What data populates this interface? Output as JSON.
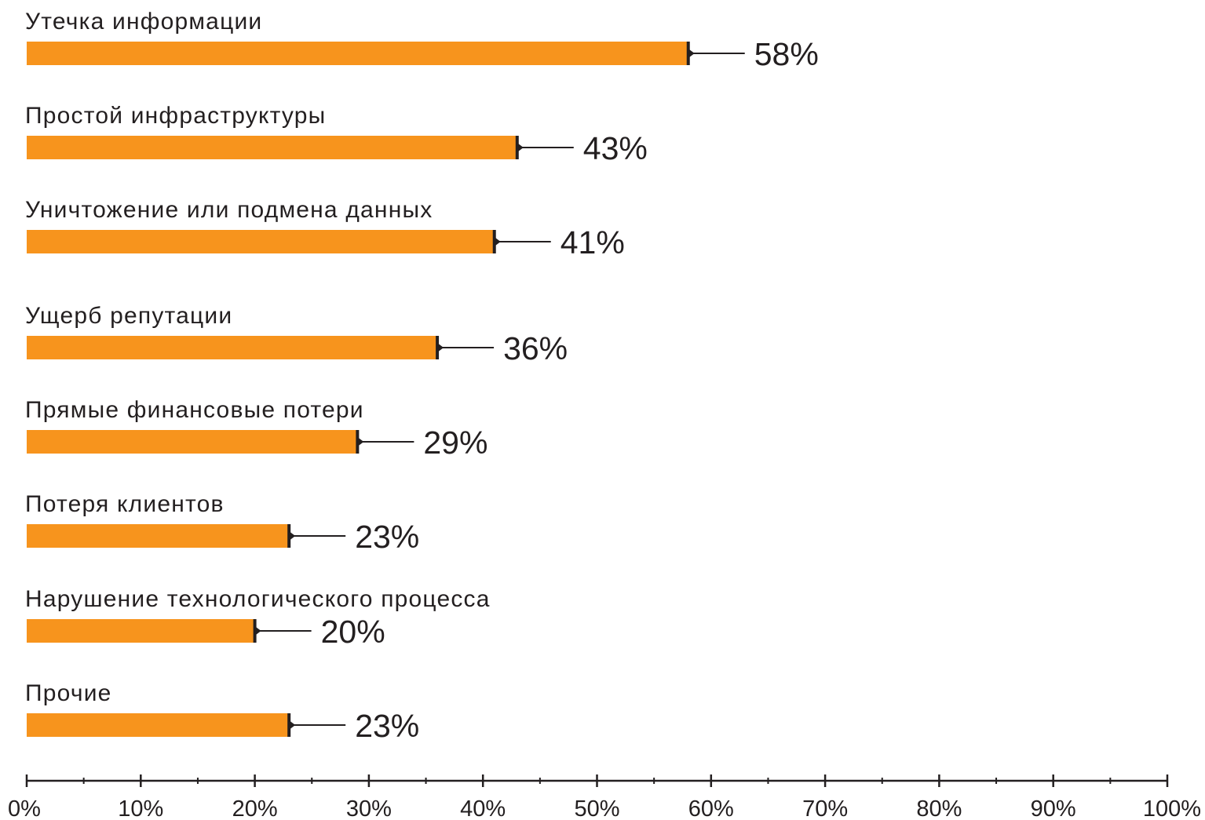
{
  "chart_data": {
    "type": "bar",
    "orientation": "horizontal",
    "categories": [
      "Утечка информации",
      "Простой инфраструктуры",
      "Уничтожение или подмена данных",
      "Ущерб репутации",
      "Прямые финансовые потери",
      "Потеря клиентов",
      "Нарушение технологического процесса",
      "Прочие"
    ],
    "values": [
      58,
      43,
      41,
      36,
      29,
      23,
      20,
      23
    ],
    "value_labels": [
      "58%",
      "43%",
      "41%",
      "36%",
      "29%",
      "23%",
      "20%",
      "23%"
    ],
    "xlim": [
      0,
      100
    ],
    "x_ticks": [
      0,
      10,
      20,
      30,
      40,
      50,
      60,
      70,
      80,
      90,
      100
    ],
    "x_tick_labels": [
      "0%",
      "10%",
      "20%",
      "30%",
      "40%",
      "50%",
      "60%",
      "70%",
      "80%",
      "90%",
      "100%"
    ],
    "title": "",
    "xlabel": "",
    "ylabel": "",
    "grid": false,
    "legend": "none",
    "colors": {
      "bar": "#f7941d",
      "text": "#231f20",
      "axis": "#231f20"
    }
  }
}
